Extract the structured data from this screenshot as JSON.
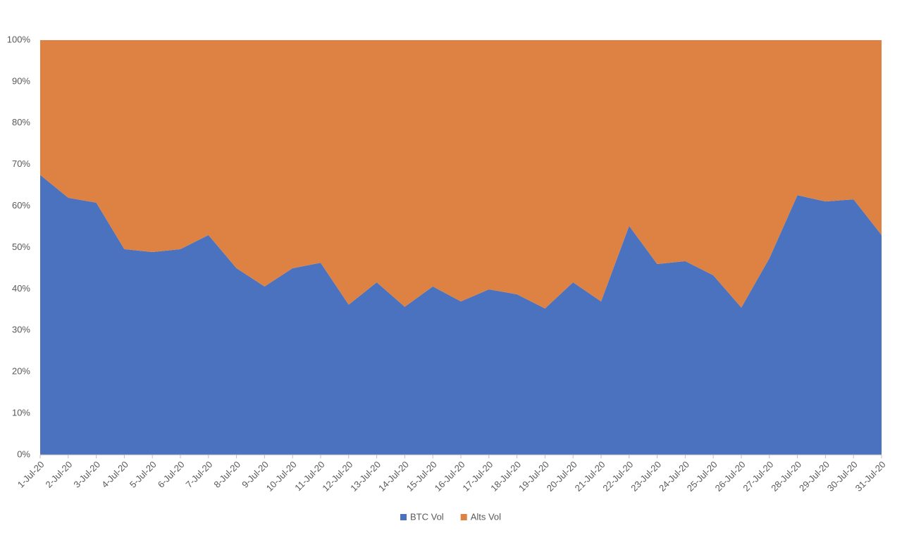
{
  "chart_data": {
    "type": "stacked_area",
    "categories": [
      "1-Jul-20",
      "2-Jul-20",
      "3-Jul-20",
      "4-Jul-20",
      "5-Jul-20",
      "6-Jul-20",
      "7-Jul-20",
      "8-Jul-20",
      "9-Jul-20",
      "10-Jul-20",
      "11-Jul-20",
      "12-Jul-20",
      "13-Jul-20",
      "14-Jul-20",
      "15-Jul-20",
      "16-Jul-20",
      "17-Jul-20",
      "18-Jul-20",
      "19-Jul-20",
      "20-Jul-20",
      "21-Jul-20",
      "22-Jul-20",
      "23-Jul-20",
      "24-Jul-20",
      "25-Jul-20",
      "26-Jul-20",
      "27-Jul-20",
      "28-Jul-20",
      "29-Jul-20",
      "30-Jul-20",
      "31-Jul-20"
    ],
    "series": [
      {
        "name": "BTC Vol",
        "color": "#4a72bf",
        "values": [
          67.5,
          62.0,
          60.8,
          49.6,
          48.9,
          49.6,
          53.0,
          45.0,
          40.6,
          45.0,
          46.3,
          36.2,
          41.6,
          35.7,
          40.6,
          37.0,
          39.9,
          38.7,
          35.3,
          41.6,
          37.0,
          55.2,
          46.0,
          46.7,
          43.3,
          35.5,
          47.4,
          62.6,
          61.1,
          61.6,
          53.0
        ]
      },
      {
        "name": "Alts Vol",
        "color": "#dd8243",
        "values": [
          32.5,
          38.0,
          39.2,
          50.4,
          51.1,
          50.4,
          47.0,
          55.0,
          59.4,
          55.0,
          53.7,
          63.8,
          58.4,
          64.3,
          59.4,
          63.0,
          60.1,
          61.3,
          64.7,
          58.4,
          63.0,
          44.8,
          54.0,
          53.3,
          56.7,
          64.5,
          52.6,
          37.4,
          38.9,
          38.4,
          47.0
        ]
      }
    ],
    "ylim": [
      0,
      100
    ],
    "yticks": [
      {
        "value": 0,
        "label": "0%"
      },
      {
        "value": 10,
        "label": "10%"
      },
      {
        "value": 20,
        "label": "20%"
      },
      {
        "value": 30,
        "label": "30%"
      },
      {
        "value": 40,
        "label": "40%"
      },
      {
        "value": 50,
        "label": "50%"
      },
      {
        "value": 60,
        "label": "60%"
      },
      {
        "value": 70,
        "label": "70%"
      },
      {
        "value": 80,
        "label": "80%"
      },
      {
        "value": 90,
        "label": "90%"
      },
      {
        "value": 100,
        "label": "100%"
      }
    ],
    "grid": false,
    "legend": "bottom"
  }
}
